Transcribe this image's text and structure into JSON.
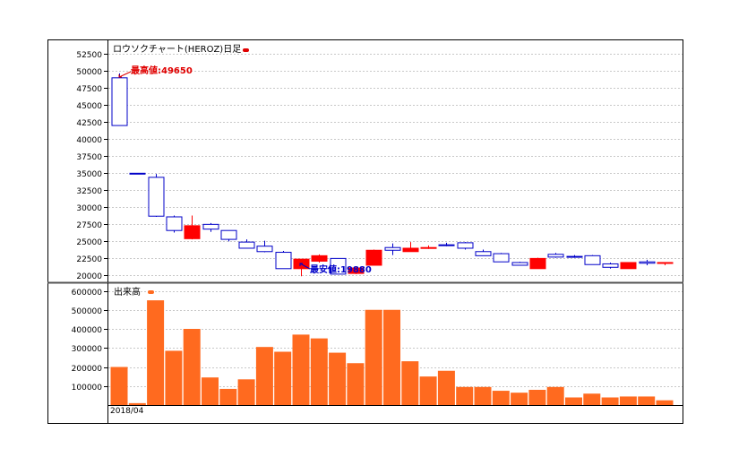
{
  "chart_data": [
    {
      "type": "candlestick",
      "title": "ロウソクチャート(HEROZ)日足",
      "ylim": [
        19000,
        54500
      ],
      "yticks": [
        20000,
        22500,
        25000,
        27500,
        30000,
        32500,
        35000,
        37500,
        40000,
        42500,
        45000,
        47500,
        50000,
        52500
      ],
      "grid": true,
      "candles": [
        {
          "o": 42000,
          "h": 49650,
          "l": 42000,
          "c": 49000
        },
        {
          "o": 35000,
          "h": 35000,
          "l": 35000,
          "c": 35000
        },
        {
          "o": 28700,
          "h": 34900,
          "l": 28600,
          "c": 34400
        },
        {
          "o": 26600,
          "h": 28800,
          "l": 26300,
          "c": 28600
        },
        {
          "o": 27300,
          "h": 28800,
          "l": 25300,
          "c": 25400
        },
        {
          "o": 26800,
          "h": 27700,
          "l": 26400,
          "c": 27500
        },
        {
          "o": 25300,
          "h": 26600,
          "l": 25000,
          "c": 26600
        },
        {
          "o": 24000,
          "h": 25300,
          "l": 24000,
          "c": 24900
        },
        {
          "o": 23500,
          "h": 25100,
          "l": 23400,
          "c": 24300
        },
        {
          "o": 21000,
          "h": 23600,
          "l": 21000,
          "c": 23400
        },
        {
          "o": 22400,
          "h": 22400,
          "l": 19880,
          "c": 21000
        },
        {
          "o": 22900,
          "h": 23100,
          "l": 21900,
          "c": 22100
        },
        {
          "o": 20200,
          "h": 22500,
          "l": 20200,
          "c": 22500
        },
        {
          "o": 21100,
          "h": 21200,
          "l": 20200,
          "c": 20300
        },
        {
          "o": 23700,
          "h": 23800,
          "l": 21500,
          "c": 21500
        },
        {
          "o": 23700,
          "h": 24700,
          "l": 23000,
          "c": 24100
        },
        {
          "o": 24000,
          "h": 24900,
          "l": 23500,
          "c": 23500
        },
        {
          "o": 24100,
          "h": 24400,
          "l": 23900,
          "c": 24000
        },
        {
          "o": 24500,
          "h": 24800,
          "l": 24300,
          "c": 24500
        },
        {
          "o": 24000,
          "h": 24900,
          "l": 23800,
          "c": 24800
        },
        {
          "o": 22900,
          "h": 23800,
          "l": 22900,
          "c": 23500
        },
        {
          "o": 22000,
          "h": 23300,
          "l": 22000,
          "c": 23200
        },
        {
          "o": 21500,
          "h": 22000,
          "l": 21500,
          "c": 21900
        },
        {
          "o": 22500,
          "h": 22600,
          "l": 21000,
          "c": 21000
        },
        {
          "o": 22700,
          "h": 23300,
          "l": 22600,
          "c": 23100
        },
        {
          "o": 22800,
          "h": 23000,
          "l": 22600,
          "c": 22800
        },
        {
          "o": 21600,
          "h": 23000,
          "l": 21600,
          "c": 22900
        },
        {
          "o": 21200,
          "h": 21900,
          "l": 21000,
          "c": 21700
        },
        {
          "o": 21900,
          "h": 21900,
          "l": 21000,
          "c": 21000
        },
        {
          "o": 21800,
          "h": 22300,
          "l": 21500,
          "c": 22000
        },
        {
          "o": 21900,
          "h": 21900,
          "l": 21500,
          "c": 21800
        }
      ],
      "annotations": {
        "high": "最高値:49650",
        "low": "最安値:19880"
      },
      "colors": {
        "up": "#0000c8",
        "down": "#ff0000",
        "grid": "#c8c8c8"
      }
    },
    {
      "type": "bar",
      "title": "出来高",
      "ylim": [
        0,
        640000
      ],
      "yticks": [
        100000,
        200000,
        300000,
        400000,
        500000,
        600000
      ],
      "grid": true,
      "x_start_label": "2018/04",
      "values": [
        200000,
        10000,
        550000,
        285000,
        400000,
        145000,
        85000,
        135000,
        305000,
        280000,
        370000,
        350000,
        275000,
        220000,
        500000,
        500000,
        230000,
        150000,
        180000,
        95000,
        95000,
        75000,
        65000,
        80000,
        95000,
        40000,
        60000,
        40000,
        45000,
        45000,
        25000
      ],
      "colors": {
        "bar": "#ff6a1f",
        "grid": "#c8c8c8"
      }
    }
  ]
}
